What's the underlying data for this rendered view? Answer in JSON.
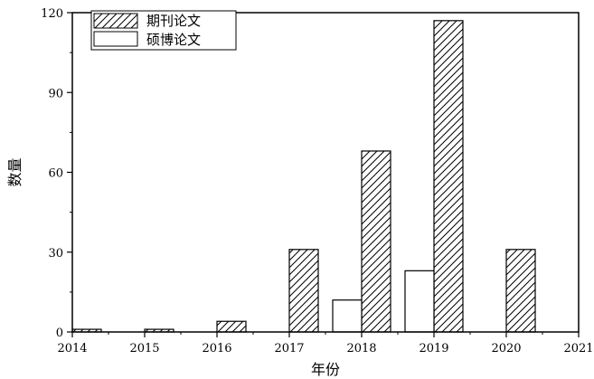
{
  "chart_data": {
    "type": "bar",
    "xlabel": "年份",
    "ylabel": "数量",
    "xlim": [
      2014,
      2021
    ],
    "ylim": [
      0,
      120
    ],
    "x_ticks": [
      "2014",
      "2015",
      "2016",
      "2017",
      "2018",
      "2019",
      "2020",
      "2021"
    ],
    "y_ticks": [
      "0",
      "30",
      "60",
      "90",
      "120"
    ],
    "legend_position": "top-left",
    "series": [
      {
        "name": "期刊论文",
        "style": "hatched",
        "points": [
          {
            "year": 2014,
            "value": 1
          },
          {
            "year": 2015,
            "value": 1
          },
          {
            "year": 2016,
            "value": 4
          },
          {
            "year": 2017,
            "value": 31
          },
          {
            "year": 2018,
            "value": 68
          },
          {
            "year": 2019,
            "value": 117
          },
          {
            "year": 2020,
            "value": 31
          }
        ]
      },
      {
        "name": "硕博论文",
        "style": "hollow",
        "points": [
          {
            "year": 2018,
            "value": 12
          },
          {
            "year": 2019,
            "value": 23
          }
        ]
      }
    ]
  }
}
